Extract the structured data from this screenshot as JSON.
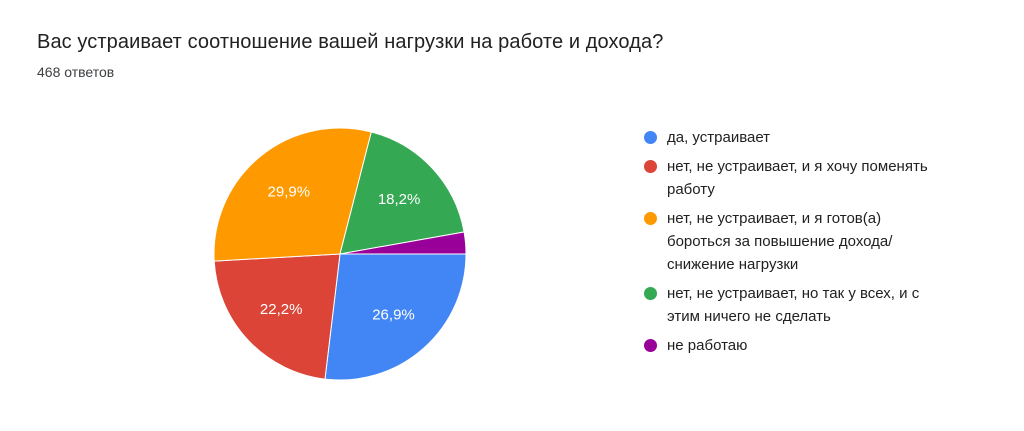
{
  "header": {
    "title": "Вас устраивает соотношение вашей нагрузки на работе и дохода?",
    "responses_count": "468 ответов"
  },
  "chart_data": {
    "type": "pie",
    "title": "Вас устраивает соотношение вашей нагрузки на работе и дохода?",
    "subtitle": "468 ответов",
    "total_responses": 468,
    "legend_position": "right",
    "start_angle_deg": 90,
    "clockwise": true,
    "slices": [
      {
        "label": "да, устраивает",
        "legend_text": "да, устраивает",
        "value_pct": 26.9,
        "data_label": "26,9%",
        "color": "#4285F4"
      },
      {
        "label": "нет, не устраивает, и я хочу поменять работу",
        "legend_text": "нет, не устраивает, и я хочу поменять\nработу",
        "value_pct": 22.2,
        "data_label": "22,2%",
        "color": "#DB4437"
      },
      {
        "label": "нет, не устраивает, и я готов(а) бороться за повышение дохода/ снижение нагрузки",
        "legend_text": "нет, не устраивает, и я готов(а)\nбороться за повышение дохода/\nснижение нагрузки",
        "value_pct": 29.9,
        "data_label": "29,9%",
        "color": "#FF9900"
      },
      {
        "label": "нет, не устраивает, но так у всех, и с этим ничего не сделать",
        "legend_text": "нет, не устраивает, но так у всех, и с\nэтим ничего не сделать",
        "value_pct": 18.2,
        "data_label": "18,2%",
        "color": "#34A853"
      },
      {
        "label": "не работаю",
        "legend_text": "не работаю",
        "value_pct": 2.8,
        "data_label": "",
        "color": "#990099"
      }
    ]
  }
}
